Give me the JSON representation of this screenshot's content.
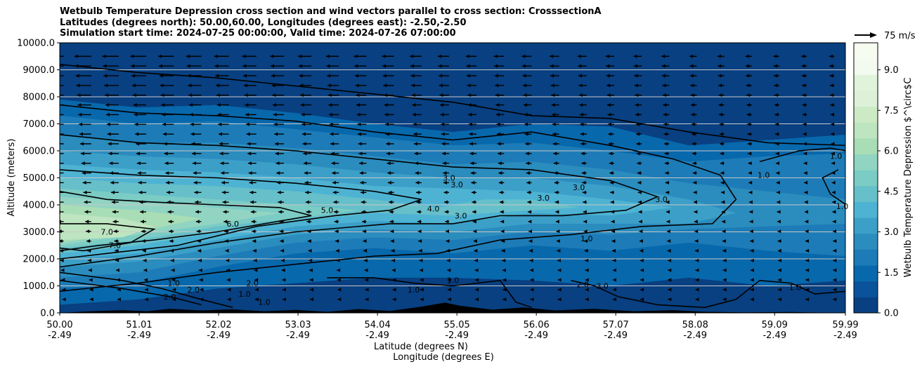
{
  "title": {
    "line1": "Wetbulb Temperature Depression cross section and wind vectors parallel to cross section: CrosssectionA",
    "line2": "Latitudes (degrees north): 50.00,60.00, Longitudes (degrees east): -2.50,-2.50",
    "line3": "Simulation start time: 2024-07-25 00:00:00, Valid time: 2024-07-26 07:00:00"
  },
  "colors": {
    "palette": [
      "#084081",
      "#0a539a",
      "#0868ac",
      "#1d7cb7",
      "#2b8cbe",
      "#3c9fc8",
      "#4eb3d3",
      "#66bfc9",
      "#7bccc4",
      "#92d4c2",
      "#a8ddb5",
      "#bde5bf",
      "#ccebc5",
      "#ddf1d8",
      "#e0f3db",
      "#f3faef",
      "#f7fcf0"
    ],
    "terrain": "#000000",
    "grid": "#c8c8c8"
  },
  "chart_data": {
    "type": "heatmap",
    "xlabel": "Latitude (degrees N)",
    "xlabel2": "Longitude (degrees E)",
    "ylabel": "Altitude (meters)",
    "xlim": [
      50.0,
      59.99
    ],
    "ylim": [
      0,
      10000
    ],
    "x_ticks": [
      {
        "lat": "50.00",
        "lon": "-2.49"
      },
      {
        "lat": "51.01",
        "lon": "-2.49"
      },
      {
        "lat": "52.02",
        "lon": "-2.49"
      },
      {
        "lat": "53.03",
        "lon": "-2.49"
      },
      {
        "lat": "54.04",
        "lon": "-2.49"
      },
      {
        "lat": "55.05",
        "lon": "-2.49"
      },
      {
        "lat": "56.06",
        "lon": "-2.49"
      },
      {
        "lat": "57.07",
        "lon": "-2.49"
      },
      {
        "lat": "58.08",
        "lon": "-2.49"
      },
      {
        "lat": "59.09",
        "lon": "-2.49"
      },
      {
        "lat": "59.99",
        "lon": "-2.49"
      }
    ],
    "y_ticks": [
      "0.0",
      "1000.0",
      "2000.0",
      "3000.0",
      "4000.0",
      "5000.0",
      "6000.0",
      "7000.0",
      "8000.0",
      "9000.0",
      "10000.0"
    ],
    "grid": "horizontal",
    "colorbar": {
      "label": "Wetbulb Temperature Depression $^\\circ$C",
      "range": [
        0,
        10
      ],
      "ticks": [
        "0.0",
        "1.5",
        "3.0",
        "4.5",
        "6.0",
        "7.5",
        "9.0"
      ]
    },
    "quiver_key": "75 m/s",
    "contour_labels": [
      {
        "text": "7.0",
        "lat": 50.7,
        "alt": 2400
      },
      {
        "text": "7.0",
        "lat": 50.6,
        "alt": 2900
      },
      {
        "text": "6.0",
        "lat": 52.2,
        "alt": 3200
      },
      {
        "text": "5.0",
        "lat": 53.4,
        "alt": 3700
      },
      {
        "text": "4.0",
        "lat": 54.75,
        "alt": 3750
      },
      {
        "text": "3.0",
        "lat": 55.1,
        "alt": 3500
      },
      {
        "text": "3.0",
        "lat": 54.95,
        "alt": 4900
      },
      {
        "text": "3.0",
        "lat": 55.05,
        "alt": 4650
      },
      {
        "text": "3.0",
        "lat": 56.15,
        "alt": 4150
      },
      {
        "text": "3.0",
        "lat": 56.6,
        "alt": 4550
      },
      {
        "text": "3.0",
        "lat": 57.65,
        "alt": 4100
      },
      {
        "text": "1.0",
        "lat": 56.7,
        "alt": 2650
      },
      {
        "text": "1.0",
        "lat": 58.95,
        "alt": 5000
      },
      {
        "text": "1.0",
        "lat": 59.87,
        "alt": 5700
      },
      {
        "text": "1.0",
        "lat": 59.95,
        "alt": 3850
      },
      {
        "text": "1.0",
        "lat": 55.0,
        "alt": 1100
      },
      {
        "text": "1.0",
        "lat": 54.5,
        "alt": 750
      },
      {
        "text": "1.0",
        "lat": 59.35,
        "alt": 850
      },
      {
        "text": "1.0",
        "lat": 51.45,
        "alt": 1000
      },
      {
        "text": "1.0",
        "lat": 52.35,
        "alt": 600
      },
      {
        "text": "2.0",
        "lat": 51.4,
        "alt": 500
      },
      {
        "text": "2.0",
        "lat": 51.7,
        "alt": 750
      },
      {
        "text": "2.0",
        "lat": 52.45,
        "alt": 1000
      },
      {
        "text": "2.0",
        "lat": 56.65,
        "alt": 950
      },
      {
        "text": "3.0",
        "lat": 56.9,
        "alt": 900
      },
      {
        "text": "1.0",
        "lat": 52.6,
        "alt": 300
      }
    ]
  }
}
